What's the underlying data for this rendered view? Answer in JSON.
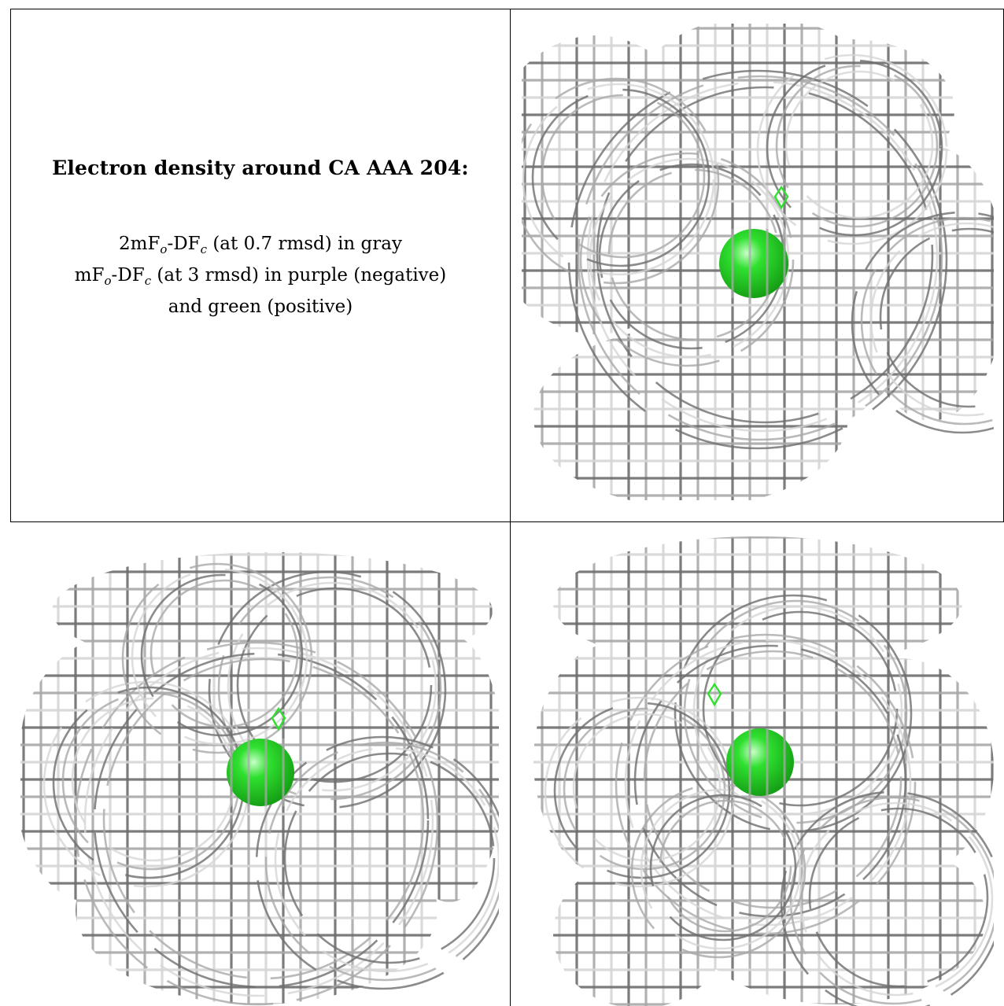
{
  "caption": {
    "title": "Electron density around CA AAA 204:",
    "line1": {
      "pre": "2mF",
      "sub1": "o",
      "mid": "-DF",
      "sub2": "c",
      "post": " (at 0.7 rmsd) in gray"
    },
    "line2": {
      "pre": "mF",
      "sub1": "o",
      "mid": "-DF",
      "sub2": "c",
      "post": " (at 3 rmsd) in purple (negative)"
    },
    "line3": "and green (positive)"
  },
  "panels": [
    {
      "id": "view-1"
    },
    {
      "id": "view-2"
    },
    {
      "id": "view-3"
    }
  ],
  "colors": {
    "mesh_dark": "#6e6e6e",
    "mesh_mid": "#a9a9a9",
    "mesh_light": "#d6d6d6",
    "positive": "#2fe02f",
    "negative": "#a020f0",
    "rule": "#000000"
  }
}
